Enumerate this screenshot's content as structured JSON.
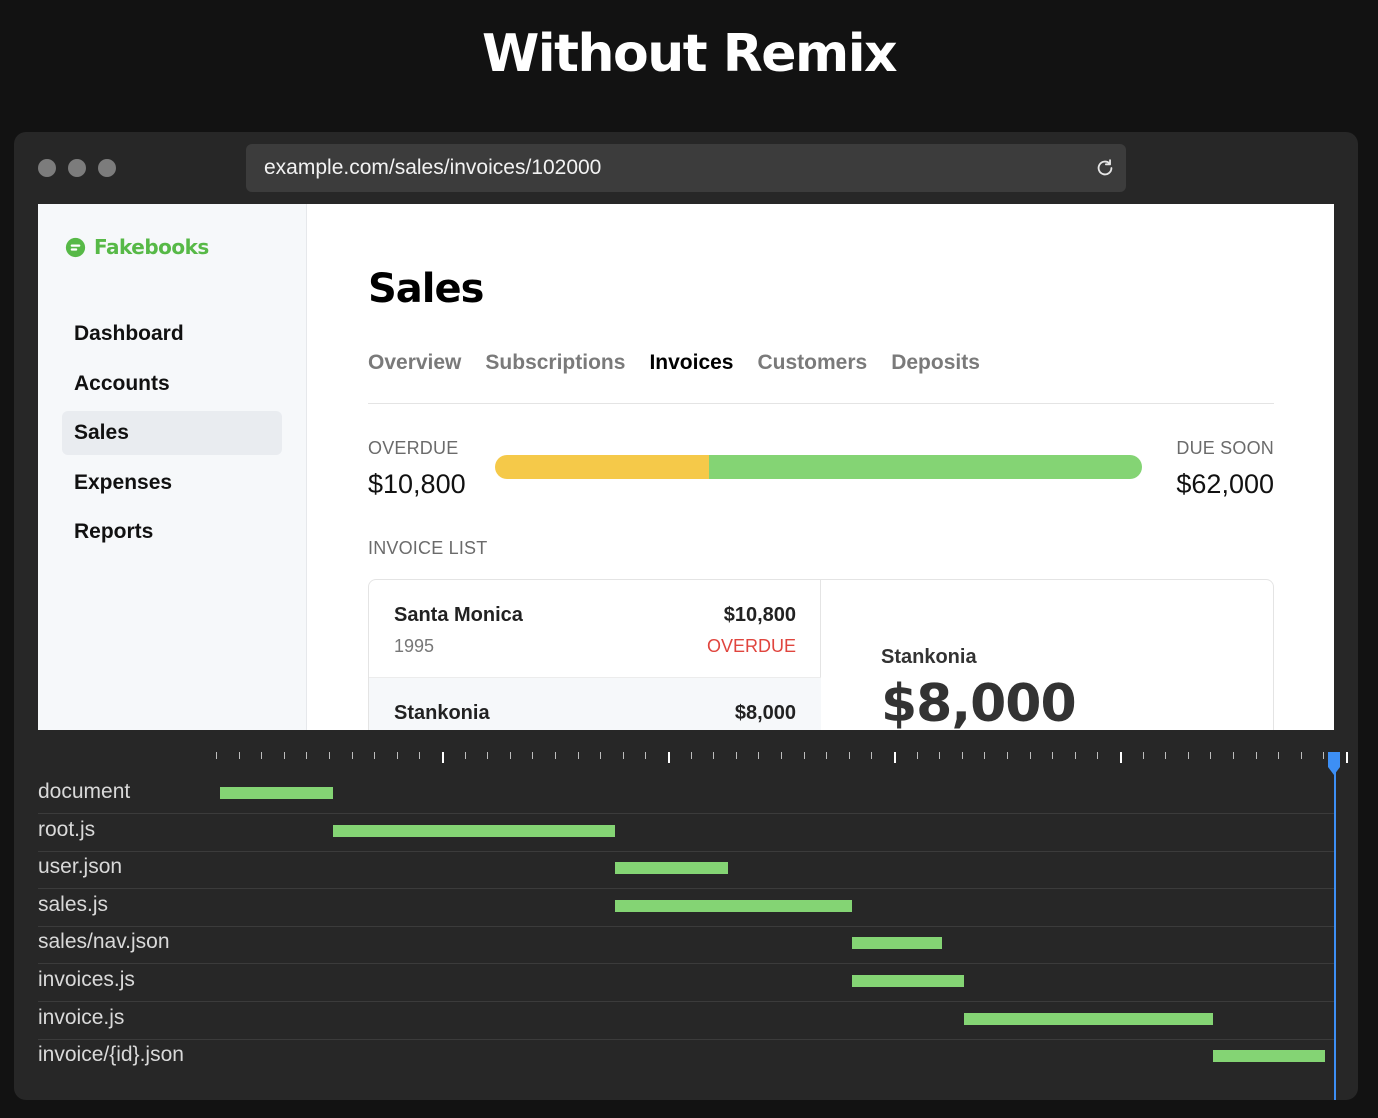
{
  "headline": "Without Remix",
  "browser": {
    "url": "example.com/sales/invoices/102000"
  },
  "app": {
    "logo": "Fakebooks",
    "nav": [
      {
        "label": "Dashboard",
        "active": false
      },
      {
        "label": "Accounts",
        "active": false
      },
      {
        "label": "Sales",
        "active": true
      },
      {
        "label": "Expenses",
        "active": false
      },
      {
        "label": "Reports",
        "active": false
      }
    ],
    "page_title": "Sales",
    "tabs": [
      {
        "label": "Overview",
        "active": false
      },
      {
        "label": "Subscriptions",
        "active": false
      },
      {
        "label": "Invoices",
        "active": true
      },
      {
        "label": "Customers",
        "active": false
      },
      {
        "label": "Deposits",
        "active": false
      }
    ],
    "summary": {
      "overdue_label": "OVERDUE",
      "overdue_amount": "$10,800",
      "due_soon_label": "DUE SOON",
      "due_soon_amount": "$62,000",
      "overdue_fraction": 0.33,
      "colors": {
        "overdue": "#f5c949",
        "due_soon": "#84d474"
      }
    },
    "invoice_list_label": "INVOICE LIST",
    "invoices": [
      {
        "name": "Santa Monica",
        "year": "1995",
        "amount": "$10,800",
        "status": "OVERDUE",
        "selected": false
      },
      {
        "name": "Stankonia",
        "year": "",
        "amount": "$8,000",
        "status": "",
        "selected": true
      }
    ],
    "detail": {
      "name": "Stankonia",
      "amount": "$8,000"
    }
  },
  "network": {
    "bar_color": "#84d474",
    "playhead_color": "#3d8ff5",
    "time_range": [
      0,
      1120
    ],
    "requests": [
      {
        "name": "document",
        "start": 4,
        "end": 117
      },
      {
        "name": "root.js",
        "start": 117,
        "end": 399
      },
      {
        "name": "user.json",
        "start": 399,
        "end": 512
      },
      {
        "name": "sales.js",
        "start": 399,
        "end": 636
      },
      {
        "name": "sales/nav.json",
        "start": 636,
        "end": 726
      },
      {
        "name": "invoices.js",
        "start": 636,
        "end": 748
      },
      {
        "name": "invoice.js",
        "start": 748,
        "end": 997
      },
      {
        "name": "invoice/{id}.json",
        "start": 997,
        "end": 1109
      }
    ]
  }
}
